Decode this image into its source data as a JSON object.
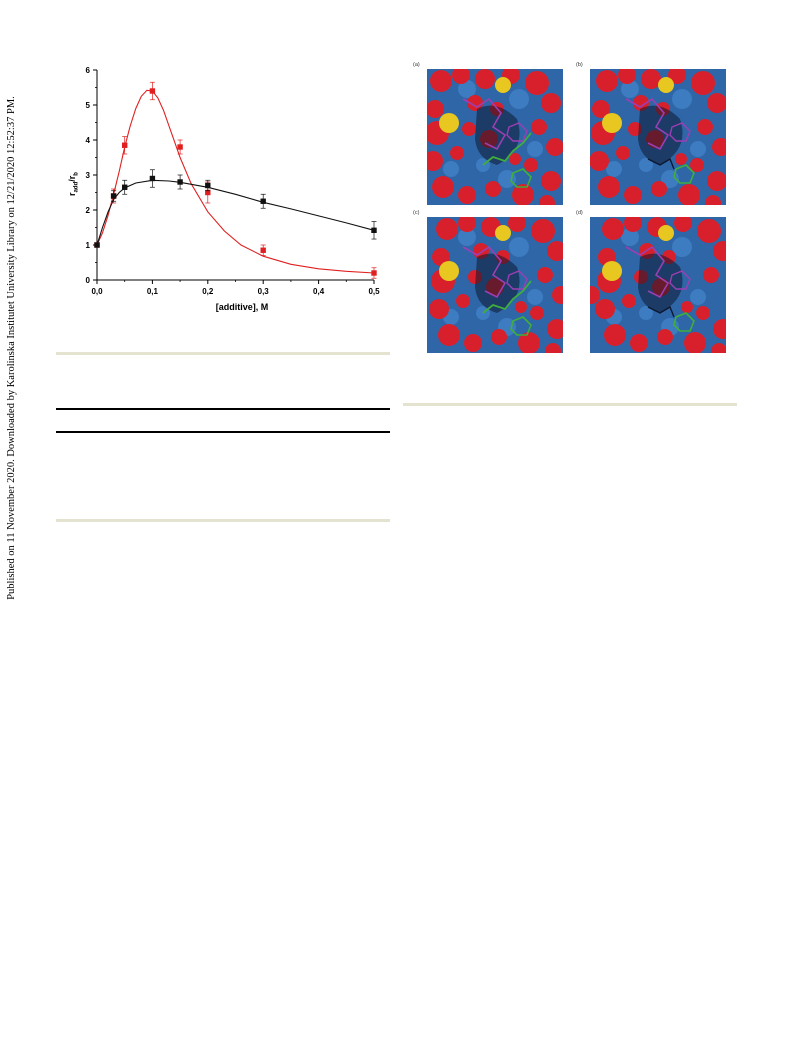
{
  "side_note": "Published on 11 November 2020. Downloaded by Karolinska Institutet University Library on 12/21/2020 12:52:37 PM.",
  "chart_data": {
    "type": "line",
    "xlabel": "[additive], M",
    "ylabel_main": "r",
    "ylabel_sub1": "add",
    "ylabel_mid": "/r",
    "ylabel_sub2": "b",
    "xlim": [
      0.0,
      0.5
    ],
    "ylim": [
      0,
      6
    ],
    "x_ticks": [
      "0,0",
      "0,1",
      "0,2",
      "0,3",
      "0,4",
      "0,5"
    ],
    "x_tick_values": [
      0.0,
      0.1,
      0.2,
      0.3,
      0.4,
      0.5
    ],
    "y_ticks": [
      "0",
      "1",
      "2",
      "3",
      "4",
      "5",
      "6"
    ],
    "y_tick_values": [
      0,
      1,
      2,
      3,
      4,
      5,
      6
    ],
    "series": [
      {
        "color": "#e02020",
        "marker": "square",
        "points": [
          {
            "x": 0.0,
            "y": 1.0,
            "err": 0.0
          },
          {
            "x": 0.03,
            "y": 2.4,
            "err": 0.2
          },
          {
            "x": 0.05,
            "y": 3.85,
            "err": 0.25
          },
          {
            "x": 0.1,
            "y": 5.4,
            "err": 0.25
          },
          {
            "x": 0.15,
            "y": 3.8,
            "err": 0.2
          },
          {
            "x": 0.2,
            "y": 2.5,
            "err": 0.3
          },
          {
            "x": 0.3,
            "y": 0.85,
            "err": 0.15
          },
          {
            "x": 0.5,
            "y": 0.2,
            "err": 0.15
          }
        ],
        "fit": [
          [
            0.0,
            1.0
          ],
          [
            0.01,
            1.35
          ],
          [
            0.02,
            1.85
          ],
          [
            0.03,
            2.45
          ],
          [
            0.04,
            3.1
          ],
          [
            0.05,
            3.8
          ],
          [
            0.06,
            4.4
          ],
          [
            0.07,
            4.9
          ],
          [
            0.08,
            5.25
          ],
          [
            0.09,
            5.42
          ],
          [
            0.1,
            5.4
          ],
          [
            0.11,
            5.2
          ],
          [
            0.12,
            4.85
          ],
          [
            0.13,
            4.4
          ],
          [
            0.14,
            3.95
          ],
          [
            0.15,
            3.5
          ],
          [
            0.17,
            2.75
          ],
          [
            0.2,
            1.95
          ],
          [
            0.23,
            1.4
          ],
          [
            0.26,
            1.0
          ],
          [
            0.3,
            0.68
          ],
          [
            0.35,
            0.45
          ],
          [
            0.4,
            0.32
          ],
          [
            0.45,
            0.25
          ],
          [
            0.5,
            0.2
          ]
        ]
      },
      {
        "color": "#111111",
        "marker": "square",
        "points": [
          {
            "x": 0.0,
            "y": 1.0,
            "err": 0.0
          },
          {
            "x": 0.03,
            "y": 2.4,
            "err": 0.15
          },
          {
            "x": 0.05,
            "y": 2.65,
            "err": 0.2
          },
          {
            "x": 0.1,
            "y": 2.9,
            "err": 0.25
          },
          {
            "x": 0.15,
            "y": 2.8,
            "err": 0.2
          },
          {
            "x": 0.2,
            "y": 2.7,
            "err": 0.15
          },
          {
            "x": 0.3,
            "y": 2.25,
            "err": 0.2
          },
          {
            "x": 0.5,
            "y": 1.42,
            "err": 0.25
          }
        ],
        "fit": [
          [
            0.0,
            1.0
          ],
          [
            0.01,
            1.5
          ],
          [
            0.02,
            1.95
          ],
          [
            0.03,
            2.3
          ],
          [
            0.04,
            2.5
          ],
          [
            0.05,
            2.63
          ],
          [
            0.07,
            2.77
          ],
          [
            0.1,
            2.85
          ],
          [
            0.13,
            2.83
          ],
          [
            0.15,
            2.79
          ],
          [
            0.2,
            2.65
          ],
          [
            0.25,
            2.45
          ],
          [
            0.3,
            2.22
          ],
          [
            0.35,
            2.03
          ],
          [
            0.4,
            1.83
          ],
          [
            0.45,
            1.63
          ],
          [
            0.5,
            1.42
          ]
        ]
      }
    ]
  },
  "figure_panels": {
    "labels": [
      "(a)",
      "(b)",
      "(c)",
      "(d)"
    ],
    "colors": {
      "surface_blue": "#2f66a8",
      "oxygen_red": "#d8202c",
      "sulfur_yellow": "#e8c820",
      "ligand_purple": "#9b3fb3",
      "ligand_green": "#3fae3a",
      "dark": "#0c1830"
    }
  }
}
